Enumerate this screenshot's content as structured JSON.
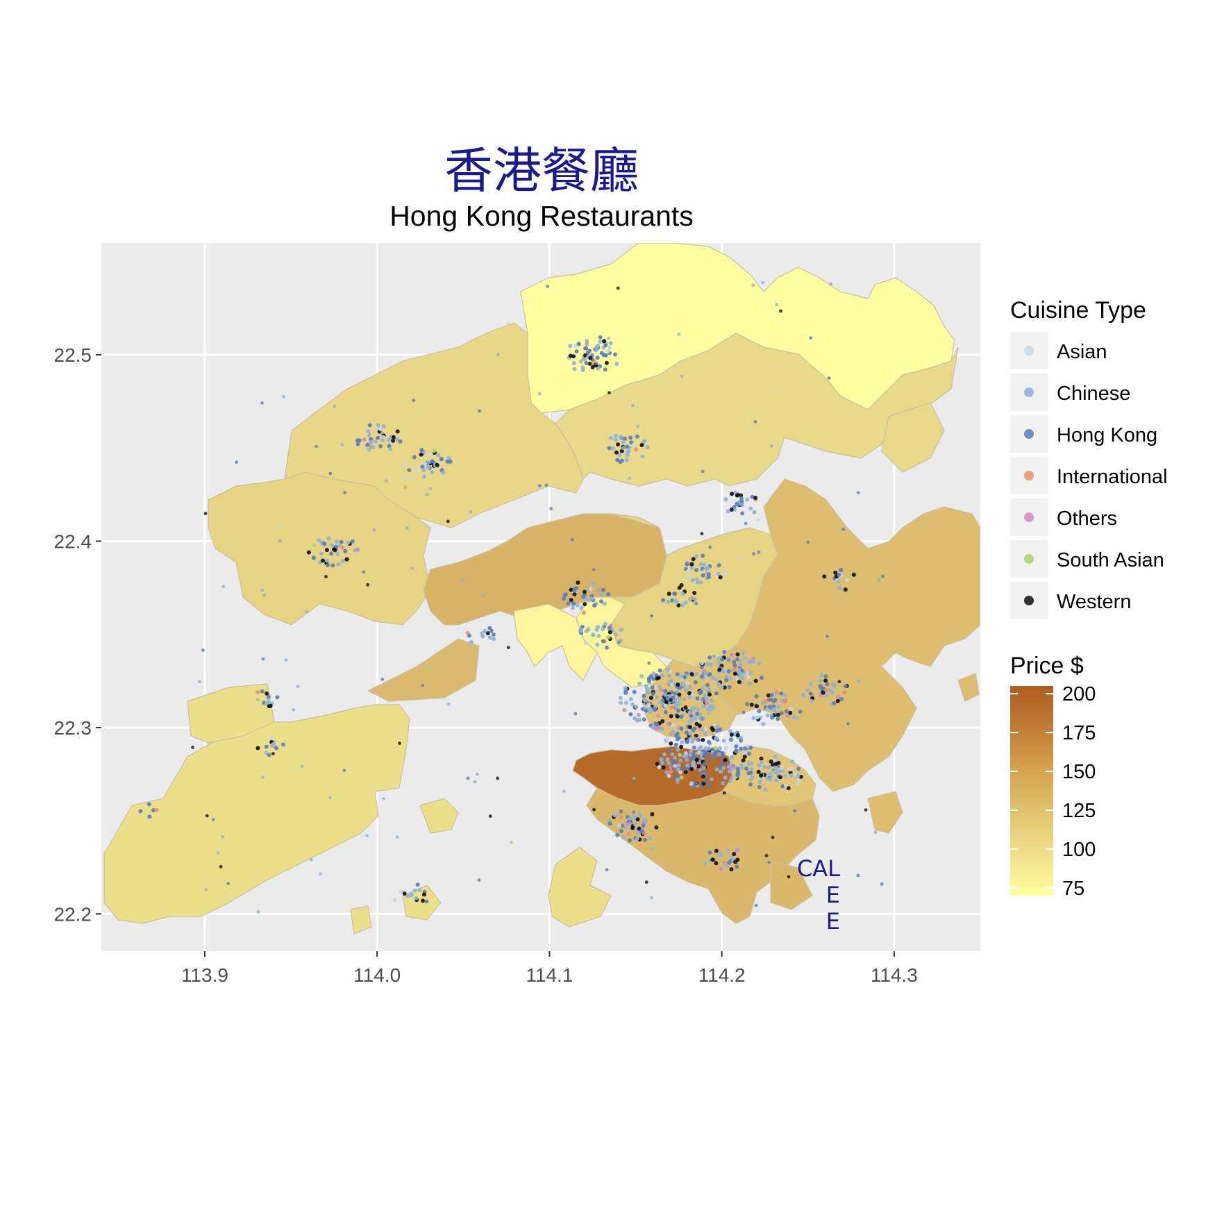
{
  "title": "香港餐廳",
  "subtitle": "Hong Kong Restaurants",
  "chart_data": {
    "type": "map",
    "x_ticks": [
      "113.9",
      "114.0",
      "114.1",
      "114.2",
      "114.3"
    ],
    "x_tick_values": [
      113.9,
      114.0,
      114.1,
      114.2,
      114.3
    ],
    "y_ticks": [
      "22.5",
      "22.4",
      "22.3",
      "22.2"
    ],
    "y_tick_values": [
      22.5,
      22.4,
      22.3,
      22.2
    ],
    "xlim": [
      113.84,
      114.35
    ],
    "ylim": [
      22.18,
      22.56
    ],
    "grid": true,
    "legend_placement": "right",
    "cuisine_legend": {
      "title": "Cuisine Type",
      "entries": [
        {
          "label": "Asian",
          "color": "#c6d6e6"
        },
        {
          "label": "Chinese",
          "color": "#8fb2d9"
        },
        {
          "label": "Hong Kong",
          "color": "#5a7db8"
        },
        {
          "label": "International",
          "color": "#e8906a"
        },
        {
          "label": "Others",
          "color": "#d187c4"
        },
        {
          "label": "South Asian",
          "color": "#a8d86a"
        },
        {
          "label": "Western",
          "color": "#111111"
        }
      ]
    },
    "price_legend": {
      "title": "Price $",
      "ticks": [
        "200",
        "175",
        "150",
        "125",
        "100",
        "75"
      ],
      "tick_values": [
        200,
        175,
        150,
        125,
        100,
        75
      ],
      "range": [
        70,
        205
      ],
      "colors": [
        "#ffff9e",
        "#f1e08b",
        "#e2c26e",
        "#d4a350",
        "#c27c35",
        "#ad5e22"
      ]
    },
    "districts": [
      {
        "name_hidden": "north",
        "price": 78,
        "color": "#feffa0"
      },
      {
        "name_hidden": "tai-po",
        "price": 108,
        "color": "#e9d98a"
      },
      {
        "name_hidden": "yuen-long",
        "price": 110,
        "color": "#e8d786"
      },
      {
        "name_hidden": "tuen-mun",
        "price": 112,
        "color": "#e6d383"
      },
      {
        "name_hidden": "tsuen-wan",
        "price": 128,
        "color": "#d8b266"
      },
      {
        "name_hidden": "sha-tin",
        "price": 112,
        "color": "#e6d383"
      },
      {
        "name_hidden": "sai-kung",
        "price": 120,
        "color": "#ddbd6f"
      },
      {
        "name_hidden": "islands",
        "price": 105,
        "color": "#ebdf8a"
      },
      {
        "name_hidden": "kwai-tsing",
        "price": 85,
        "color": "#fbf59b"
      },
      {
        "name_hidden": "kowloon",
        "price": 120,
        "color": "#dfc173"
      },
      {
        "name_hidden": "central-wan-chai",
        "price": 190,
        "color": "#b56a2a"
      },
      {
        "name_hidden": "southern",
        "price": 125,
        "color": "#dab86b"
      },
      {
        "name_hidden": "eastern",
        "price": 118,
        "color": "#e1c678"
      }
    ],
    "clusters": [
      {
        "lon": 114.125,
        "lat": 22.5,
        "n": 60
      },
      {
        "lon": 114.145,
        "lat": 22.45,
        "n": 35
      },
      {
        "lon": 114.03,
        "lat": 22.442,
        "n": 40
      },
      {
        "lon": 114.0,
        "lat": 22.455,
        "n": 35
      },
      {
        "lon": 113.975,
        "lat": 22.395,
        "n": 40
      },
      {
        "lon": 114.21,
        "lat": 22.42,
        "n": 25
      },
      {
        "lon": 114.19,
        "lat": 22.385,
        "n": 35
      },
      {
        "lon": 114.175,
        "lat": 22.37,
        "n": 20
      },
      {
        "lon": 114.12,
        "lat": 22.37,
        "n": 40
      },
      {
        "lon": 114.13,
        "lat": 22.35,
        "n": 30
      },
      {
        "lon": 114.17,
        "lat": 22.315,
        "n": 220
      },
      {
        "lon": 114.205,
        "lat": 22.33,
        "n": 80
      },
      {
        "lon": 114.23,
        "lat": 22.31,
        "n": 50
      },
      {
        "lon": 114.26,
        "lat": 22.32,
        "n": 35
      },
      {
        "lon": 114.19,
        "lat": 22.285,
        "n": 220
      },
      {
        "lon": 114.23,
        "lat": 22.275,
        "n": 60
      },
      {
        "lon": 114.15,
        "lat": 22.248,
        "n": 50
      },
      {
        "lon": 114.2,
        "lat": 22.23,
        "n": 25
      },
      {
        "lon": 114.06,
        "lat": 22.35,
        "n": 12
      },
      {
        "lon": 113.94,
        "lat": 22.29,
        "n": 12
      },
      {
        "lon": 113.935,
        "lat": 22.315,
        "n": 12
      },
      {
        "lon": 114.02,
        "lat": 22.21,
        "n": 15
      },
      {
        "lon": 113.865,
        "lat": 22.255,
        "n": 6
      },
      {
        "lon": 114.27,
        "lat": 22.38,
        "n": 15
      }
    ]
  },
  "stamp": {
    "line1": "CAL",
    "line2": "E",
    "line3": "E"
  }
}
